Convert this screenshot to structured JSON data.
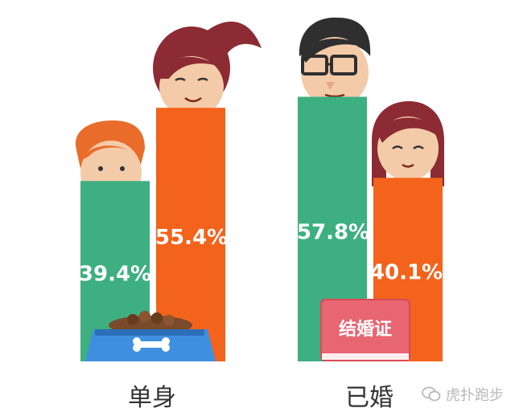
{
  "chart_data": {
    "type": "bar",
    "categories": [
      "单身",
      "已婚"
    ],
    "series": [
      {
        "values": [
          39.4,
          57.8
        ],
        "color": "#3daf80"
      },
      {
        "values": [
          55.4,
          40.1
        ],
        "color": "#f3631c"
      }
    ],
    "data_labels": [
      [
        "39.4%",
        "55.4%"
      ],
      [
        "57.8%",
        "40.1%"
      ]
    ],
    "ylim": [
      0,
      75
    ],
    "legend": "none",
    "grid": false
  },
  "props": {
    "marriage_book_label": "结婚证",
    "pet_bowl_icon": "dog-food-bowl-icon",
    "book_color": "#e05260"
  },
  "watermark": {
    "text": "虎扑跑步",
    "icon": "wechat-icon"
  }
}
